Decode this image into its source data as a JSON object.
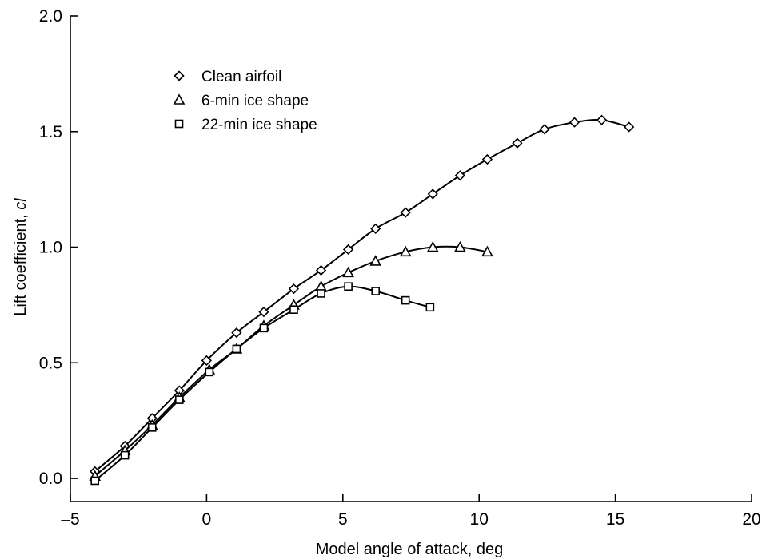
{
  "chart_data": {
    "type": "line",
    "title": "",
    "xlabel": "Model angle of attack, deg",
    "ylabel": "Lift coefficient, ",
    "ylabel_italic": "cl",
    "xlim": [
      -5,
      20
    ],
    "ylim": [
      -0.1,
      2.0
    ],
    "x_ticks": [
      -5,
      0,
      5,
      10,
      15,
      20
    ],
    "x_tick_labels": [
      "–5",
      "0",
      "5",
      "10",
      "15",
      "20"
    ],
    "y_ticks": [
      0.0,
      0.5,
      1.0,
      1.5,
      2.0
    ],
    "y_tick_labels": [
      "0.0",
      "0.5",
      "1.0",
      "1.5",
      "2.0"
    ],
    "grid": false,
    "legend_position": "top-left",
    "series": [
      {
        "name": "Clean airfoil",
        "marker": "diamond",
        "x": [
          -4.1,
          -3.0,
          -2.0,
          -1.0,
          0.0,
          1.1,
          2.1,
          3.2,
          4.2,
          5.2,
          6.2,
          7.3,
          8.3,
          9.3,
          10.3,
          11.4,
          12.4,
          13.5,
          14.5,
          15.5
        ],
        "y": [
          0.03,
          0.14,
          0.26,
          0.38,
          0.51,
          0.63,
          0.72,
          0.82,
          0.9,
          0.99,
          1.08,
          1.15,
          1.23,
          1.31,
          1.38,
          1.45,
          1.51,
          1.54,
          1.55,
          1.52
        ]
      },
      {
        "name": "6-min ice shape",
        "marker": "triangle",
        "x": [
          -4.1,
          -3.0,
          -2.0,
          -1.0,
          0.1,
          1.1,
          2.1,
          3.2,
          4.2,
          5.2,
          6.2,
          7.3,
          8.3,
          9.3,
          10.3
        ],
        "y": [
          0.01,
          0.12,
          0.23,
          0.35,
          0.47,
          0.56,
          0.66,
          0.75,
          0.83,
          0.89,
          0.94,
          0.98,
          1.0,
          1.0,
          0.98
        ]
      },
      {
        "name": "22-min ice shape",
        "marker": "square",
        "x": [
          -4.1,
          -3.0,
          -2.0,
          -1.0,
          0.1,
          1.1,
          2.1,
          3.2,
          4.2,
          5.2,
          6.2,
          7.3,
          8.2
        ],
        "y": [
          -0.01,
          0.1,
          0.22,
          0.34,
          0.46,
          0.56,
          0.65,
          0.73,
          0.8,
          0.83,
          0.81,
          0.77,
          0.74
        ]
      }
    ]
  }
}
